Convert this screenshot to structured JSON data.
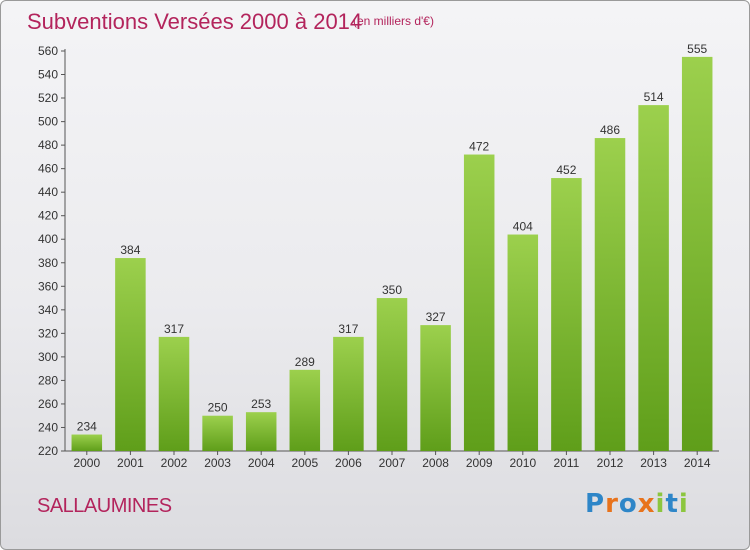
{
  "header": {
    "title": "Subventions Versées 2000 à 2014",
    "unit_note": "(en milliers d'€)"
  },
  "footer": {
    "commune": "SALLAUMINES",
    "logo_text": "Proxiti"
  },
  "colors": {
    "accent": "#b3245c",
    "bar_light": "#9cd04d",
    "bar_dark": "#5f9e1a"
  },
  "chart_data": {
    "type": "bar",
    "title": "Subventions Versées 2000 à 2014",
    "subtitle": "(en milliers d'€)",
    "xlabel": "",
    "ylabel": "",
    "categories": [
      "2000",
      "2001",
      "2002",
      "2003",
      "2004",
      "2005",
      "2006",
      "2007",
      "2008",
      "2009",
      "2010",
      "2011",
      "2012",
      "2013",
      "2014"
    ],
    "values": [
      234,
      384,
      317,
      250,
      253,
      289,
      317,
      350,
      327,
      472,
      404,
      452,
      486,
      514,
      555
    ],
    "ylim": [
      220,
      560
    ],
    "yticks": [
      220,
      240,
      260,
      280,
      300,
      320,
      340,
      360,
      380,
      400,
      420,
      440,
      460,
      480,
      500,
      520,
      540,
      560
    ],
    "grid": false,
    "legend": "none"
  }
}
